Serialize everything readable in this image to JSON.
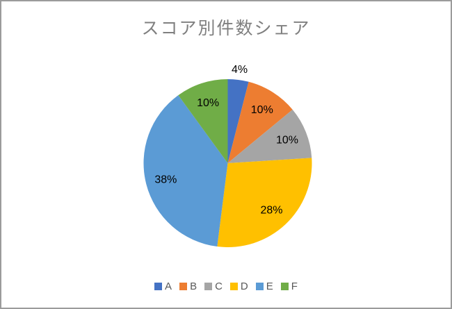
{
  "window": {
    "background": "#FFFFFF",
    "border_color": "#9B9B9B"
  },
  "chart_data": {
    "type": "pie",
    "title": "スコア別件数シェア",
    "categories": [
      "A",
      "B",
      "C",
      "D",
      "E",
      "F"
    ],
    "values": [
      4,
      10,
      10,
      28,
      38,
      10
    ],
    "labels": [
      "4%",
      "10%",
      "10%",
      "28%",
      "38%",
      "10%"
    ],
    "colors": [
      "#4472C4",
      "#ED7D31",
      "#A5A5A5",
      "#FFC000",
      "#5B9BD5",
      "#70AD47"
    ],
    "label_placement": [
      "outside",
      "inside",
      "inside",
      "inside",
      "inside",
      "inside"
    ],
    "start_angle_deg": 0,
    "direction": "clockwise",
    "legend_position": "bottom",
    "legend_entries": [
      "A",
      "B",
      "C",
      "D",
      "E",
      "F"
    ],
    "title_color": "#7F7F7F",
    "data_label_color": "#000000",
    "legend_text_color": "#595959"
  }
}
